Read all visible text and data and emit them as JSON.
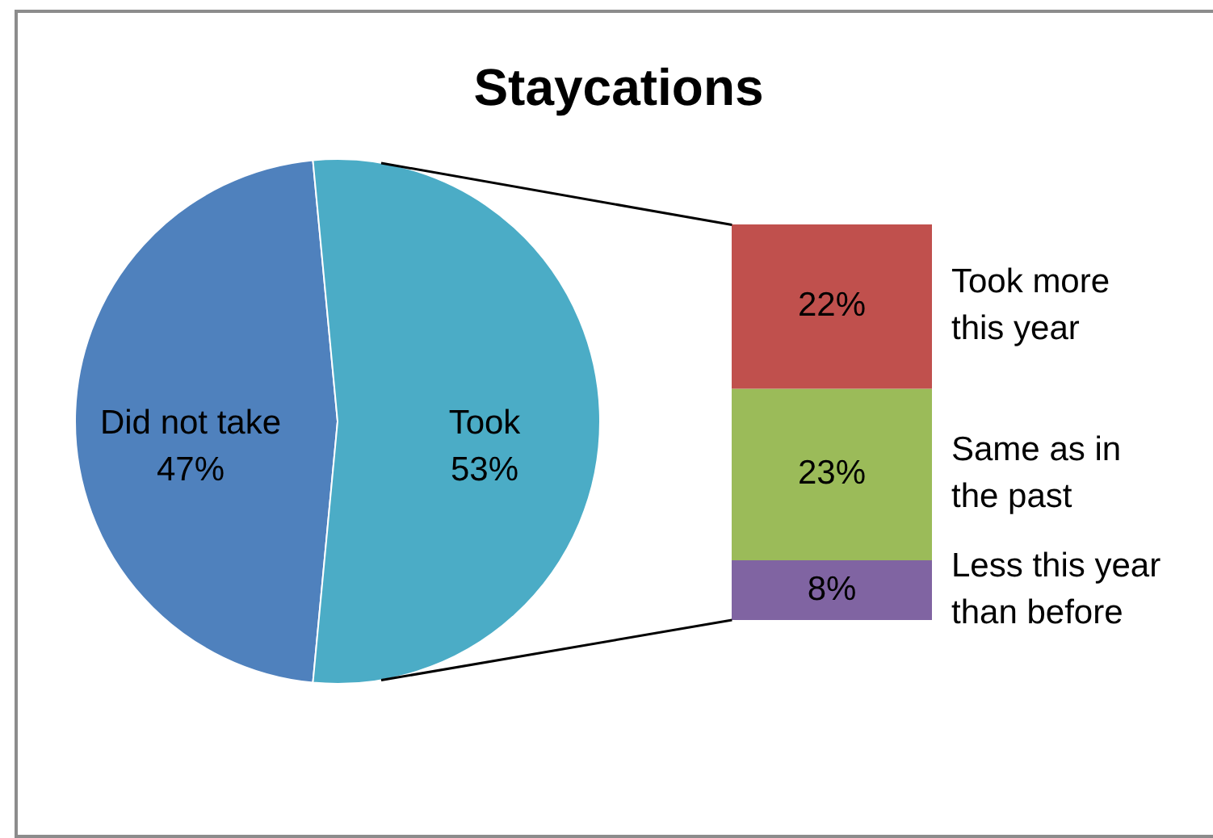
{
  "chart_data": [
    {
      "type": "pie",
      "title": "Staycations",
      "categories": [
        "Did not take",
        "Took"
      ],
      "values": [
        47,
        53
      ],
      "colors": [
        "#4f81bd",
        "#4bacc6"
      ],
      "value_labels": [
        "47%",
        "53%"
      ]
    },
    {
      "type": "bar",
      "stacked": true,
      "tick_labels": false,
      "categories": [
        null
      ],
      "series": [
        {
          "name": "Less this year than before",
          "color": "#8064a2",
          "values": [
            8
          ],
          "value_labels": [
            "8%"
          ]
        },
        {
          "name": "Same as in the past",
          "color": "#9bbb59",
          "values": [
            23
          ],
          "value_labels": [
            "23%"
          ]
        },
        {
          "name": "Took more this year",
          "color": "#c0504d",
          "values": [
            22
          ],
          "value_labels": [
            "22%"
          ]
        }
      ]
    }
  ]
}
